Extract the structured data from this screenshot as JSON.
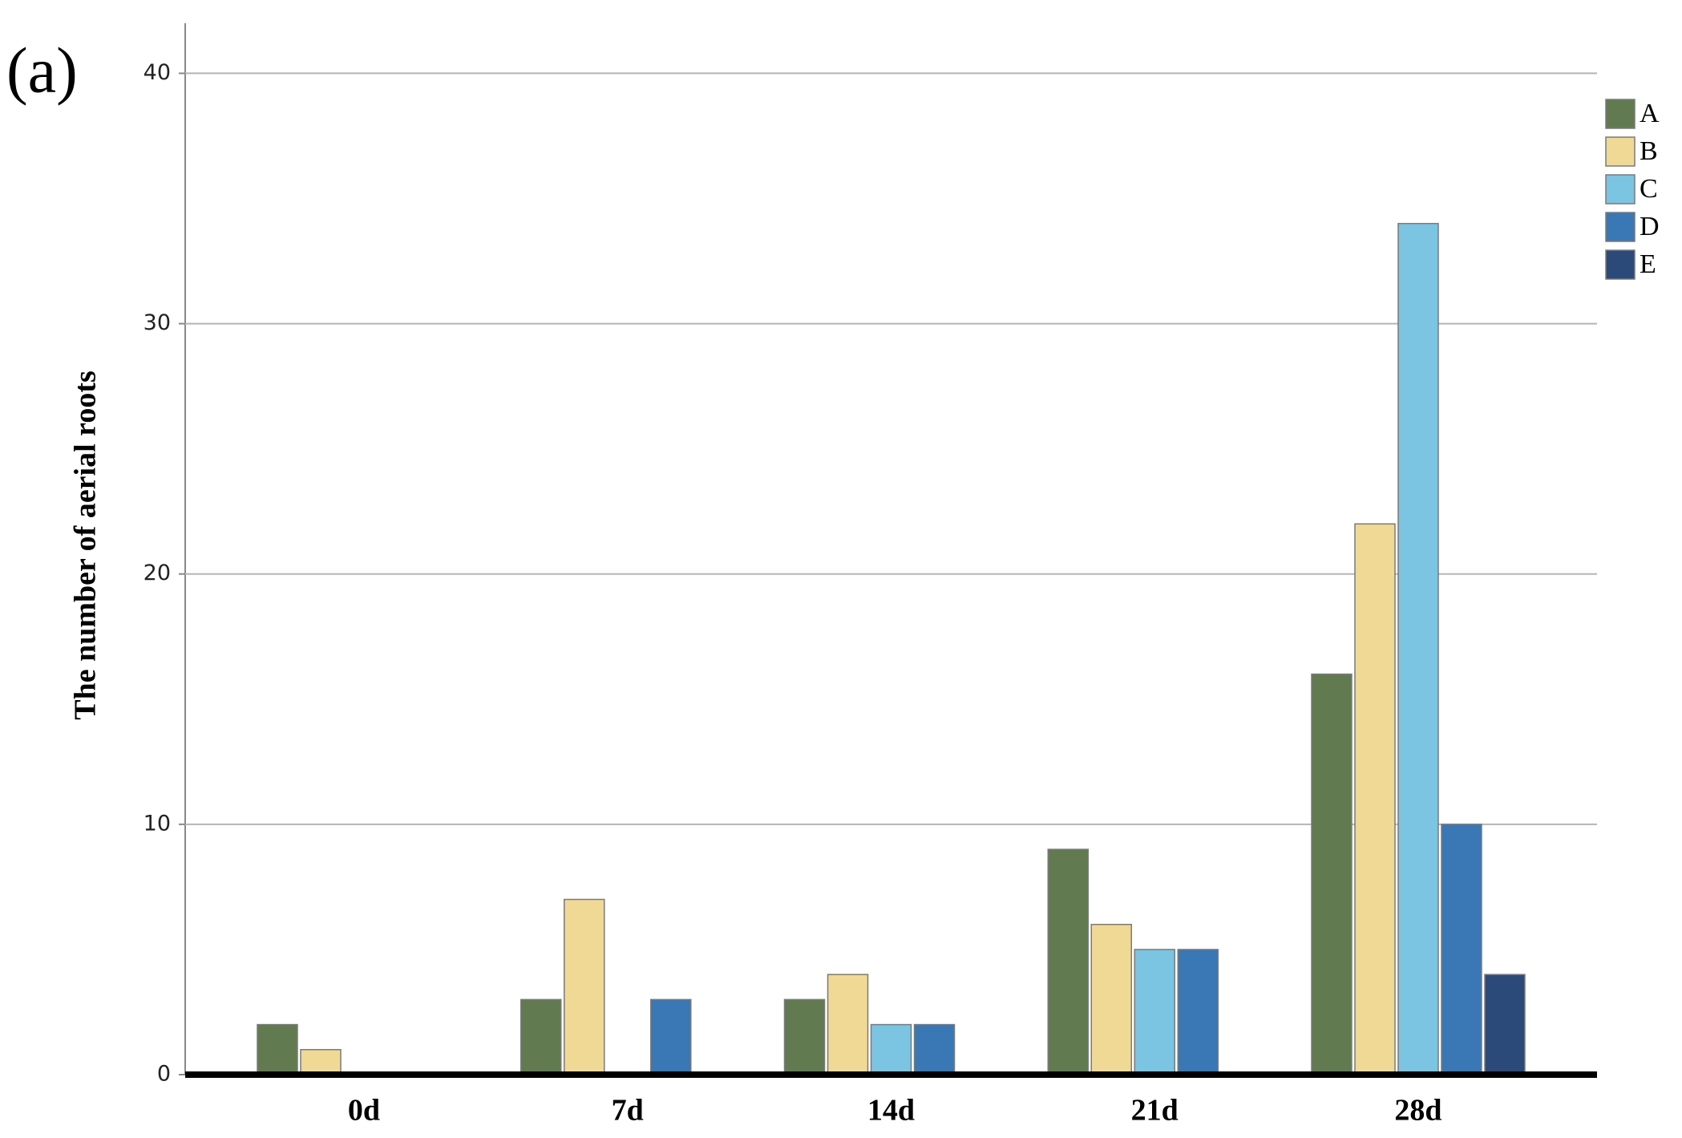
{
  "chart_data": {
    "type": "bar",
    "panel_label": "(a)",
    "y_label": "The number of aerial roots",
    "categories": [
      "0d",
      "7d",
      "14d",
      "21d",
      "28d"
    ],
    "series": [
      {
        "name": "A",
        "color": "#627a50",
        "values": [
          2,
          3,
          3,
          9,
          16
        ]
      },
      {
        "name": "B",
        "color": "#efd995",
        "values": [
          1,
          7,
          4,
          6,
          22
        ]
      },
      {
        "name": "C",
        "color": "#7bc4e2",
        "values": [
          0,
          0,
          2,
          5,
          34
        ]
      },
      {
        "name": "D",
        "color": "#3a77b5",
        "values": [
          0,
          3,
          2,
          5,
          10
        ]
      },
      {
        "name": "E",
        "color": "#2b4a7a",
        "values": [
          0,
          0,
          0,
          0,
          4
        ]
      }
    ],
    "ylim": [
      0,
      42
    ],
    "yticks": [
      0,
      10,
      20,
      30,
      40
    ],
    "grid": true,
    "legend": "right"
  }
}
